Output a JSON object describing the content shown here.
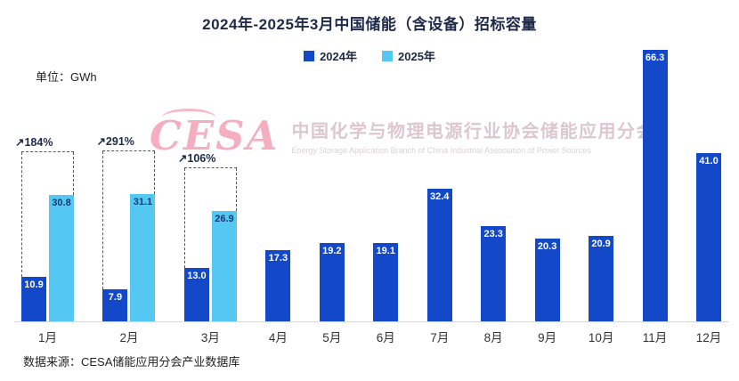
{
  "unit_label": "单位：GWh",
  "legend": [
    {
      "label": "2024年",
      "color": "#1349c8"
    },
    {
      "label": "2025年",
      "color": "#54c7f2"
    }
  ],
  "watermark": {
    "logo": "CESA",
    "cn": "中国化学与物理电源行业协会储能应用分会",
    "en": "Energy Storage Application Branch of China Industrial Association of Power Sources"
  },
  "source": "数据来源：CESA储能应用分会产业数据库",
  "chart_data": {
    "type": "bar",
    "title": "2024年-2025年3月中国储能（含设备）招标容量",
    "categories": [
      "1月",
      "2月",
      "3月",
      "4月",
      "5月",
      "6月",
      "7月",
      "8月",
      "9月",
      "10月",
      "11月",
      "12月"
    ],
    "series": [
      {
        "name": "2024年",
        "color": "#1349c8",
        "values": [
          10.9,
          7.9,
          13.0,
          17.3,
          19.2,
          19.1,
          32.4,
          23.3,
          20.3,
          20.9,
          66.3,
          41.0
        ]
      },
      {
        "name": "2025年",
        "color": "#54c7f2",
        "values": [
          30.8,
          31.1,
          26.9,
          null,
          null,
          null,
          null,
          null,
          null,
          null,
          null,
          null
        ]
      }
    ],
    "annotations": [
      {
        "month_index": 0,
        "label": "↗184%"
      },
      {
        "month_index": 1,
        "label": "↗291%"
      },
      {
        "month_index": 2,
        "label": "↗106%"
      }
    ],
    "ylabel": "GWh",
    "ylim": [
      0,
      70
    ],
    "grid": false,
    "legend_position": "top"
  }
}
